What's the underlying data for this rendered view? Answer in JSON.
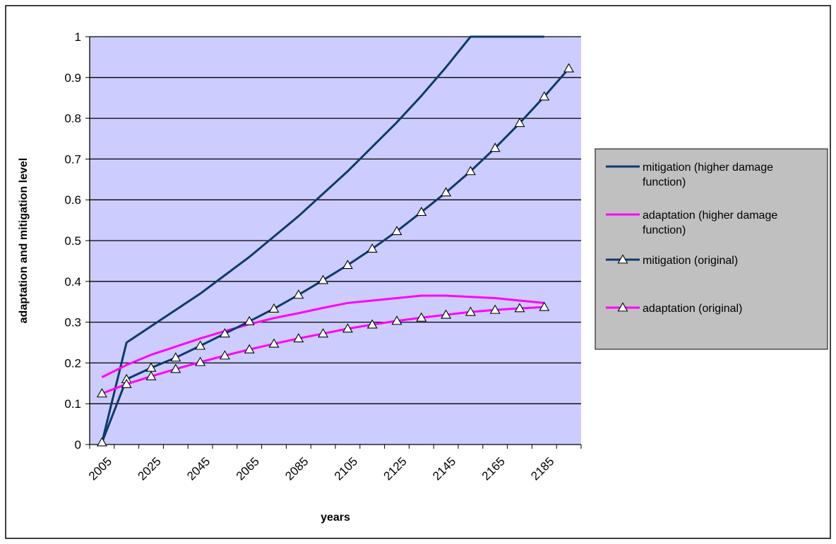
{
  "chart_data": {
    "type": "line",
    "title": "",
    "xlabel": "years",
    "ylabel": "adaptation and mitigation level",
    "categories": [
      "2005",
      "2015",
      "2025",
      "2035",
      "2045",
      "2055",
      "2065",
      "2075",
      "2085",
      "2095",
      "2105",
      "2115",
      "2125",
      "2135",
      "2145",
      "2155",
      "2165",
      "2175",
      "2185",
      "2195"
    ],
    "x_tick_labels": [
      "2005",
      "2025",
      "2045",
      "2065",
      "2085",
      "2105",
      "2125",
      "2145",
      "2165",
      "2185"
    ],
    "ylim": [
      0,
      1
    ],
    "y_ticks": [
      "0",
      "0.1",
      "0.2",
      "0.3",
      "0.4",
      "0.5",
      "0.6",
      "0.7",
      "0.8",
      "0.9",
      "1"
    ],
    "grid": "horizontal",
    "legend_position": "right",
    "colors": {
      "plot_background": "#ccccff",
      "legend_background": "#c0c0c0",
      "mitigation": "#0d3a6b",
      "adaptation": "#ff00ff"
    },
    "series": [
      {
        "name": "mitigation (higher damage function)",
        "color": "#0d3a6b",
        "marker": "none",
        "values": [
          0.005,
          0.25,
          0.29,
          0.33,
          0.37,
          0.415,
          0.46,
          0.51,
          0.56,
          0.615,
          0.67,
          0.73,
          0.79,
          0.855,
          0.925,
          1.0,
          1.0,
          1.0,
          1.0,
          null
        ]
      },
      {
        "name": "adaptation (higher damage function)",
        "color": "#ff00ff",
        "marker": "none",
        "values": [
          0.165,
          0.195,
          0.22,
          0.24,
          0.26,
          0.278,
          0.295,
          0.31,
          0.322,
          0.335,
          0.347,
          0.353,
          0.359,
          0.365,
          0.365,
          0.362,
          0.359,
          0.353,
          0.347,
          null
        ]
      },
      {
        "name": "mitigation (original)",
        "color": "#0d3a6b",
        "marker": "triangle",
        "values": [
          0.005,
          0.16,
          0.188,
          0.213,
          0.242,
          0.272,
          0.302,
          0.333,
          0.367,
          0.403,
          0.44,
          0.48,
          0.523,
          0.57,
          0.618,
          0.67,
          0.727,
          0.788,
          0.853,
          0.922
        ]
      },
      {
        "name": "adaptation (original)",
        "color": "#ff00ff",
        "marker": "triangle",
        "values": [
          0.125,
          0.148,
          0.167,
          0.185,
          0.202,
          0.218,
          0.233,
          0.247,
          0.26,
          0.272,
          0.284,
          0.294,
          0.303,
          0.311,
          0.318,
          0.325,
          0.33,
          0.334,
          0.337,
          null
        ]
      }
    ]
  }
}
